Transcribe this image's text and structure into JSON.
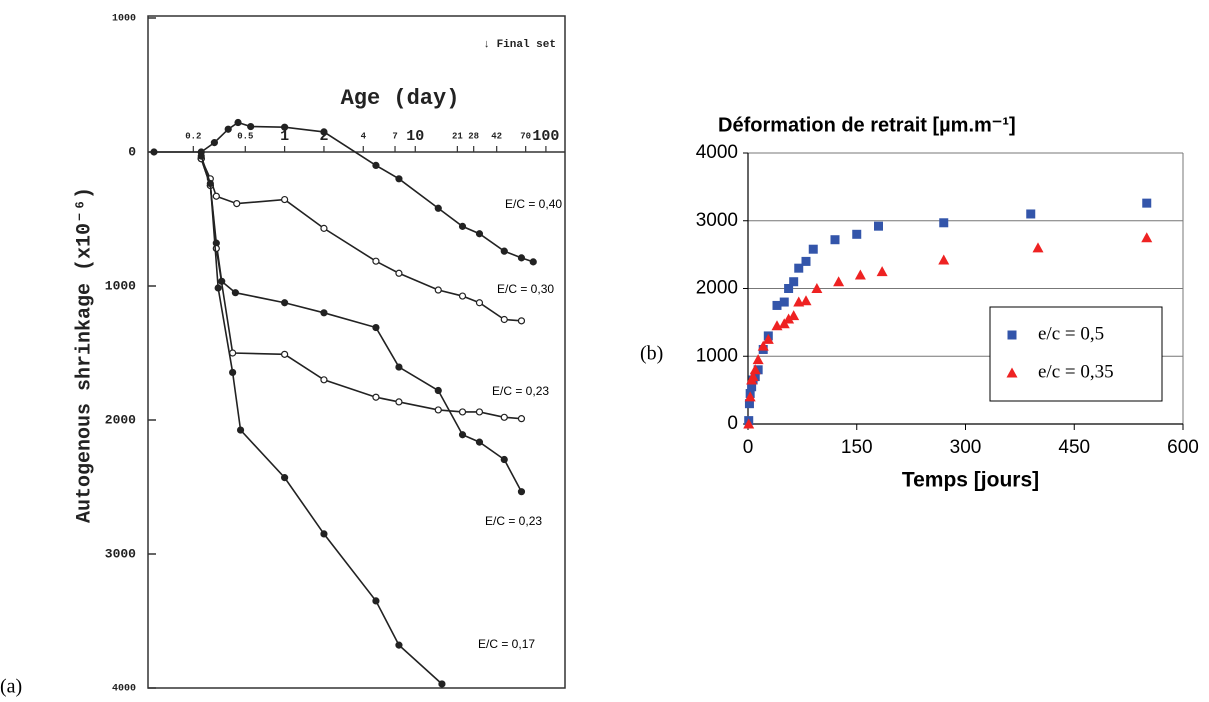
{
  "chart_data": [
    {
      "type": "line",
      "panel_label": "(a)",
      "xlabel": "Age (day)",
      "ylabel": "Autogenous shrinkage (x10⁻⁶)",
      "annotation": "↓ Final set",
      "xscale": "log",
      "xlim": [
        0.09,
        140
      ],
      "xticks": [
        0.2,
        0.5,
        1,
        2,
        4,
        7,
        10,
        21,
        28,
        42,
        70,
        100
      ],
      "ylim": [
        -1000,
        4000
      ],
      "y_inverted": true,
      "yticks": [
        {
          "value": -1000,
          "label": "1000"
        },
        0,
        {
          "value": 1000,
          "label": "1000"
        },
        2000,
        3000,
        4000
      ],
      "series": [
        {
          "name": "E/C = 0,40",
          "color": "#222",
          "marker": "filled",
          "x": [
            0.1,
            0.23,
            0.29,
            0.37,
            0.44,
            0.55,
            1,
            2,
            5,
            7.5,
            15,
            23,
            31,
            48,
            65,
            80
          ],
          "values": [
            0,
            0,
            -70,
            -170,
            -220,
            -190,
            -185,
            -150,
            100,
            200,
            420,
            555,
            610,
            740,
            790,
            820
          ]
        },
        {
          "name": "E/C = 0,30",
          "color": "#222",
          "marker": "open",
          "x": [
            0.23,
            0.27,
            0.3,
            0.43,
            1,
            2,
            5,
            7.5,
            15,
            23,
            31,
            48,
            65
          ],
          "values": [
            50,
            200,
            330,
            385,
            355,
            570,
            815,
            905,
            1030,
            1075,
            1125,
            1250,
            1260
          ]
        },
        {
          "name": "E/C = 0,23",
          "color": "#222",
          "marker": "filled",
          "x": [
            0.23,
            0.27,
            0.3,
            0.33,
            0.42,
            1,
            2,
            5,
            7.5,
            15,
            23,
            31,
            48,
            65
          ],
          "values": [
            50,
            250,
            680,
            965,
            1050,
            1125,
            1200,
            1310,
            1605,
            1780,
            2110,
            2165,
            2295,
            2535
          ]
        },
        {
          "name": "E/C = 0,23",
          "color": "#222",
          "marker": "open",
          "x": [
            0.23,
            0.27,
            0.3,
            0.4,
            1,
            2,
            5,
            7.5,
            15,
            23,
            31,
            48,
            65
          ],
          "values": [
            50,
            250,
            720,
            1500,
            1510,
            1700,
            1830,
            1865,
            1925,
            1940,
            1940,
            1980,
            1990
          ]
        },
        {
          "name": "E/C = 0,17",
          "color": "#222",
          "marker": "filled",
          "x": [
            0.23,
            0.27,
            0.31,
            0.4,
            0.46,
            1,
            2,
            5,
            7.5,
            16
          ],
          "values": [
            30,
            235,
            1015,
            1645,
            2075,
            2430,
            2850,
            3350,
            3680,
            3970
          ]
        }
      ]
    },
    {
      "type": "scatter",
      "panel_label": "(b)",
      "title": "Déformation de retrait [µm.m⁻¹]",
      "xlabel": "Temps [jours]",
      "xlim": [
        0,
        600
      ],
      "xticks": [
        0,
        150,
        300,
        450,
        600
      ],
      "ylim": [
        0,
        4000
      ],
      "yticks": [
        0,
        1000,
        2000,
        3000,
        4000
      ],
      "grid": true,
      "legend_loc": "lower right",
      "series": [
        {
          "name": "e/c = 0,5",
          "color": "#3355aa",
          "marker": "square",
          "x": [
            1,
            2,
            3,
            5,
            7,
            10,
            14,
            21,
            28,
            40,
            50,
            56,
            63,
            70,
            80,
            90,
            120,
            150,
            180,
            270,
            390,
            550
          ],
          "values": [
            50,
            300,
            450,
            550,
            650,
            700,
            800,
            1100,
            1300,
            1750,
            1800,
            2000,
            2100,
            2300,
            2400,
            2580,
            2720,
            2800,
            2920,
            2970,
            3100,
            3260
          ]
        },
        {
          "name": "e/c = 0,35",
          "color": "#ee2222",
          "marker": "triangle",
          "x": [
            1,
            3,
            5,
            7,
            10,
            14,
            21,
            28,
            40,
            50,
            56,
            63,
            70,
            80,
            95,
            125,
            155,
            185,
            270,
            400,
            550
          ],
          "values": [
            0,
            400,
            650,
            700,
            800,
            950,
            1150,
            1250,
            1450,
            1480,
            1550,
            1600,
            1800,
            1820,
            2000,
            2100,
            2200,
            2250,
            2420,
            2600,
            2750
          ]
        }
      ]
    }
  ]
}
